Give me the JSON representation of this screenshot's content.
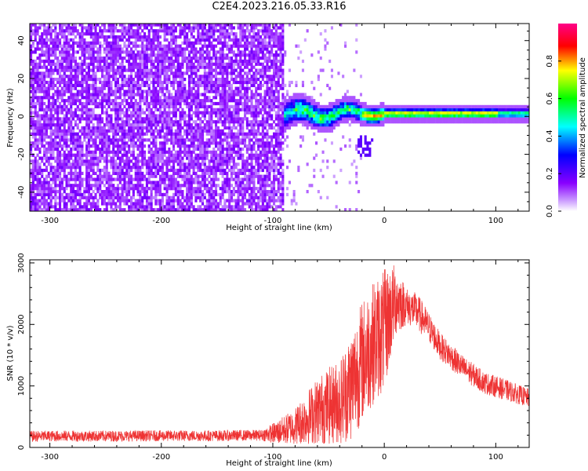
{
  "title": "C2E4.2023.216.05.33.R16",
  "colors": {
    "snr_line": "#ee3333",
    "axis": "#000000"
  },
  "chart_data": [
    {
      "type": "heatmap",
      "title": "C2E4.2023.216.05.33.R16",
      "xlabel": "Height of straight line (km)",
      "ylabel": "Frequency (Hz)",
      "xlim": [
        -318,
        130
      ],
      "ylim": [
        -50,
        49
      ],
      "x_ticks": [
        -300,
        -200,
        -100,
        0,
        100
      ],
      "y_ticks": [
        -40,
        -20,
        0,
        20,
        40
      ],
      "colorbar": {
        "label": "Normalized spectral amplitude",
        "range": [
          0,
          1
        ],
        "ticks": [
          0.0,
          0.2,
          0.4,
          0.6,
          0.8
        ],
        "colormap": [
          "#ffffff",
          "#8800ff",
          "#0000ff",
          "#00ffff",
          "#00ff00",
          "#ffff00",
          "#ff0000",
          "#ff0088"
        ]
      },
      "features": {
        "noise_region_x": [
          -318,
          -90
        ],
        "noise_amplitude": 0.25,
        "signal_band_center_hz": 1.5,
        "signal_onset_x": -90,
        "peak_region_x": [
          -20,
          100
        ],
        "peak_amplitude": 0.9
      }
    },
    {
      "type": "line",
      "xlabel": "Height of straight line (km)",
      "ylabel": "SNR (10 * v/v)",
      "xlim": [
        -318,
        130
      ],
      "ylim": [
        0,
        3050
      ],
      "x_ticks": [
        -300,
        -200,
        -100,
        0,
        100
      ],
      "y_ticks": [
        0,
        1000,
        2000,
        3000
      ],
      "envelope": {
        "x": [
          -318,
          -300,
          -250,
          -200,
          -150,
          -110,
          -95,
          -80,
          -60,
          -40,
          -30,
          -20,
          -10,
          0,
          10,
          20,
          30,
          40,
          50,
          70,
          90,
          110,
          130
        ],
        "center": [
          180,
          185,
          185,
          190,
          190,
          200,
          250,
          350,
          600,
          750,
          1000,
          1400,
          1700,
          1900,
          2400,
          2300,
          2200,
          1950,
          1650,
          1300,
          1050,
          930,
          800
        ],
        "spread": [
          90,
          90,
          90,
          90,
          90,
          90,
          200,
          300,
          550,
          700,
          900,
          1000,
          1000,
          1000,
          600,
          300,
          300,
          250,
          220,
          200,
          180,
          170,
          150
        ]
      }
    }
  ]
}
